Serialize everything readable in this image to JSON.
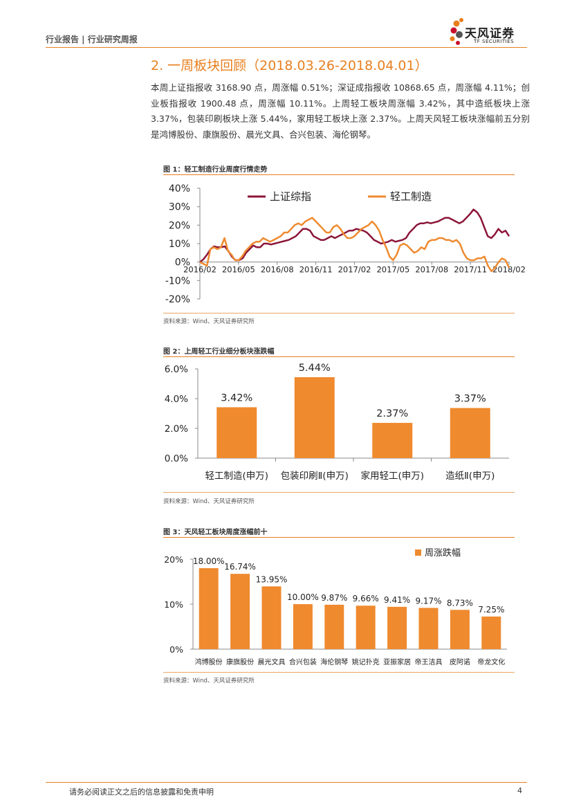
{
  "header": {
    "left_text": "行业报告 | 行业研究周报"
  },
  "logo": {
    "name_cn": "天风证券",
    "name_en": "TF SECURITIES",
    "colors": [
      "#e87f1e",
      "#c8102e",
      "#555555"
    ]
  },
  "section": {
    "title": "2. 一周板块回顾（2018.03.26-2018.04.01）",
    "body": "本周上证指报收 3168.90 点，周涨幅 0.51%；深证成指报收 10868.65 点，周涨幅 4.11%；创业板指报收 1900.48 点，周涨幅 10.11%。上周轻工板块周涨幅 3.42%，其中造纸板块上涨 3.37%，包装印刷板块上涨 5.44%，家用轻工板块上涨 2.37%。上周天风轻工板块涨幅前五分别是鸿博股份、康旗股份、晨光文具、合兴包装、海伦钢琴。"
  },
  "figures": [
    {
      "title": "图 1：轻工制造行业周度行情走势",
      "source": "资料来源：Wind、天风证券研究所"
    },
    {
      "title": "图 2：上周轻工行业细分板块涨跌幅",
      "source": "资料来源：Wind、天风证券研究所"
    },
    {
      "title": "图 3：天风轻工板块周度涨幅前十",
      "source": "资料来源：Wind、天风证券研究所"
    }
  ],
  "chart_data": [
    {
      "type": "line",
      "x_ticks": [
        "2016/02",
        "2016/05",
        "2016/08",
        "2016/11",
        "2017/02",
        "2017/05",
        "2017/08",
        "2017/11",
        "2018/02"
      ],
      "y_ticks": [
        "40%",
        "30%",
        "20%",
        "10%",
        "0%",
        "-10%",
        "-20%"
      ],
      "ylim": [
        -20,
        40
      ],
      "legend_position": "top",
      "series": [
        {
          "name": "上证综指",
          "color": "#8b1538",
          "values": [
            0,
            1.5,
            4,
            7,
            8.5,
            8,
            8,
            8.5,
            6,
            3,
            1,
            1,
            2,
            5,
            7,
            9,
            8,
            8,
            10,
            10,
            9.5,
            10,
            10.5,
            11,
            11.5,
            12,
            13,
            14,
            16,
            18,
            18,
            17,
            14,
            13,
            12,
            12,
            13,
            14,
            13,
            14,
            15,
            16,
            17,
            17,
            18,
            17.5,
            17,
            16,
            14,
            12,
            11,
            10,
            10.5,
            11,
            12,
            11,
            11.5,
            12,
            13,
            16,
            18,
            20,
            21,
            21,
            21.5,
            21,
            21.5,
            22,
            23,
            24,
            24,
            23,
            22,
            21,
            22,
            24,
            26,
            28.5,
            27,
            24,
            19,
            14,
            13,
            15,
            18,
            16,
            17,
            14
          ]
        },
        {
          "name": "轻工制造",
          "color": "#ef8a2f",
          "values": [
            0,
            -1,
            -2,
            7,
            8,
            7,
            8,
            13,
            6,
            4,
            1,
            1,
            3,
            6,
            8,
            10,
            11,
            11,
            13,
            12,
            11,
            12,
            13,
            14,
            16,
            16,
            18,
            20,
            21,
            20,
            22,
            23,
            24,
            22,
            20,
            18,
            16,
            16,
            19,
            20,
            18,
            15,
            13,
            13,
            14,
            16,
            18,
            19,
            20,
            22,
            20,
            17,
            12,
            8,
            3,
            1,
            4,
            9,
            10,
            9,
            7,
            5,
            6,
            8,
            7,
            11,
            12,
            12,
            13,
            13,
            12,
            12,
            11,
            12,
            10,
            5,
            2,
            1,
            1,
            2,
            2,
            3,
            -2,
            -5,
            -3,
            0,
            2,
            1,
            -3
          ]
        }
      ]
    },
    {
      "type": "bar",
      "categories": [
        "轻工制造(申万)",
        "包装印刷Ⅱ(申万)",
        "家用轻工(申万)",
        "造纸Ⅱ(申万)"
      ],
      "values": [
        3.42,
        5.44,
        2.37,
        3.37
      ],
      "labels": [
        "3.42%",
        "5.44%",
        "2.37%",
        "3.37%"
      ],
      "y_ticks": [
        "6.0%",
        "4.0%",
        "2.0%",
        "0.0%"
      ],
      "ylim": [
        0,
        6
      ],
      "color": "#ef8a2f"
    },
    {
      "type": "bar",
      "categories": [
        "鸿博股份",
        "康旗股份",
        "晨光文具",
        "合兴包装",
        "海伦钢琴",
        "姚记扑克",
        "亚振家居",
        "帝王洁具",
        "皮阿诺",
        "帝龙文化"
      ],
      "values": [
        18.0,
        16.74,
        13.95,
        10.0,
        9.87,
        9.66,
        9.41,
        9.17,
        8.73,
        7.25
      ],
      "labels": [
        "18.00%",
        "16.74%",
        "13.95%",
        "10.00%",
        "9.87%",
        "9.66%",
        "9.41%",
        "9.17%",
        "8.73%",
        "7.25%"
      ],
      "y_ticks": [
        "20%",
        "10%",
        "0%"
      ],
      "ylim": [
        0,
        20
      ],
      "legend": "周涨跌幅",
      "legend_position": "top-right",
      "color": "#ef8a2f"
    }
  ],
  "footer": {
    "text": "请务必阅读正文之后的信息披露和免责申明",
    "page": "4"
  }
}
